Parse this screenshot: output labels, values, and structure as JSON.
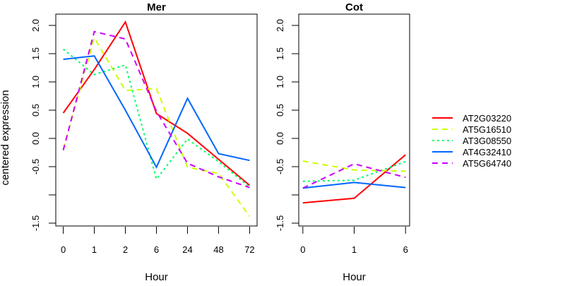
{
  "chart_data": [
    {
      "type": "line",
      "title": "Mer",
      "xlabel": "Hour",
      "ylabel": "centered expression",
      "x": [
        "0",
        "1",
        "2",
        "6",
        "24",
        "48",
        "72"
      ],
      "ylim": [
        -1.55,
        2.2
      ],
      "yticks": [
        {
          "value": -1.5,
          "label": "-1.5"
        },
        {
          "value": -1.0,
          "label": ""
        },
        {
          "value": -0.5,
          "label": "-0.5"
        },
        {
          "value": 0.0,
          "label": "0.0"
        },
        {
          "value": 0.5,
          "label": "0.5"
        },
        {
          "value": 1.0,
          "label": "1.0"
        },
        {
          "value": 1.5,
          "label": "1.5"
        },
        {
          "value": 2.0,
          "label": "2.0"
        }
      ],
      "grid": false,
      "series": [
        {
          "name": "AT2G03220",
          "color": "#FF0000",
          "line": "solid",
          "values": [
            0.45,
            1.22,
            2.06,
            0.44,
            0.09,
            -0.37,
            -0.83
          ]
        },
        {
          "name": "AT5G16510",
          "color": "#CCFF00",
          "line": "dashed",
          "values": [
            -0.19,
            1.78,
            0.85,
            0.88,
            -0.51,
            -0.62,
            -1.38
          ]
        },
        {
          "name": "AT3G08550",
          "color": "#00FF66",
          "line": "dotted",
          "values": [
            1.58,
            1.13,
            1.3,
            -0.72,
            -0.01,
            -0.41,
            -0.86
          ]
        },
        {
          "name": "AT4G32410",
          "color": "#0066FF",
          "line": "solid",
          "values": [
            1.4,
            1.46,
            0.5,
            -0.51,
            0.71,
            -0.27,
            -0.39
          ]
        },
        {
          "name": "AT5G64740",
          "color": "#CC00FF",
          "line": "dashed",
          "values": [
            -0.21,
            1.89,
            1.76,
            0.48,
            -0.44,
            -0.68,
            -0.87
          ]
        }
      ]
    },
    {
      "type": "line",
      "title": "Cot",
      "xlabel": "Hour",
      "ylabel": "",
      "x": [
        "0",
        "1",
        "6"
      ],
      "ylim": [
        -1.55,
        2.2
      ],
      "yticks": [
        {
          "value": -1.5,
          "label": "-1.5"
        },
        {
          "value": -1.0,
          "label": ""
        },
        {
          "value": -0.5,
          "label": "-0.5"
        },
        {
          "value": 0.0,
          "label": "0.0"
        },
        {
          "value": 0.5,
          "label": "0.5"
        },
        {
          "value": 1.0,
          "label": "1.0"
        },
        {
          "value": 1.5,
          "label": "1.5"
        },
        {
          "value": 2.0,
          "label": "2.0"
        }
      ],
      "grid": false,
      "series": [
        {
          "name": "AT2G03220",
          "color": "#FF0000",
          "line": "solid",
          "values": [
            -1.14,
            -1.06,
            -0.29
          ]
        },
        {
          "name": "AT5G16510",
          "color": "#CCFF00",
          "line": "dashed",
          "values": [
            -0.4,
            -0.56,
            -0.58
          ]
        },
        {
          "name": "AT3G08550",
          "color": "#00FF66",
          "line": "dotted",
          "values": [
            -0.76,
            -0.74,
            -0.41
          ]
        },
        {
          "name": "AT4G32410",
          "color": "#0066FF",
          "line": "solid",
          "values": [
            -0.88,
            -0.78,
            -0.87
          ]
        },
        {
          "name": "AT5G64740",
          "color": "#CC00FF",
          "line": "dashed",
          "values": [
            -0.88,
            -0.45,
            -0.69
          ]
        }
      ]
    }
  ],
  "legend": {
    "position": "right",
    "entries": [
      {
        "label": "AT2G03220",
        "color": "#FF0000",
        "line": "solid"
      },
      {
        "label": "AT5G16510",
        "color": "#CCFF00",
        "line": "dashed"
      },
      {
        "label": "AT3G08550",
        "color": "#00FF66",
        "line": "dotted"
      },
      {
        "label": "AT4G32410",
        "color": "#0066FF",
        "line": "solid"
      },
      {
        "label": "AT5G64740",
        "color": "#CC00FF",
        "line": "dashed"
      }
    ]
  }
}
